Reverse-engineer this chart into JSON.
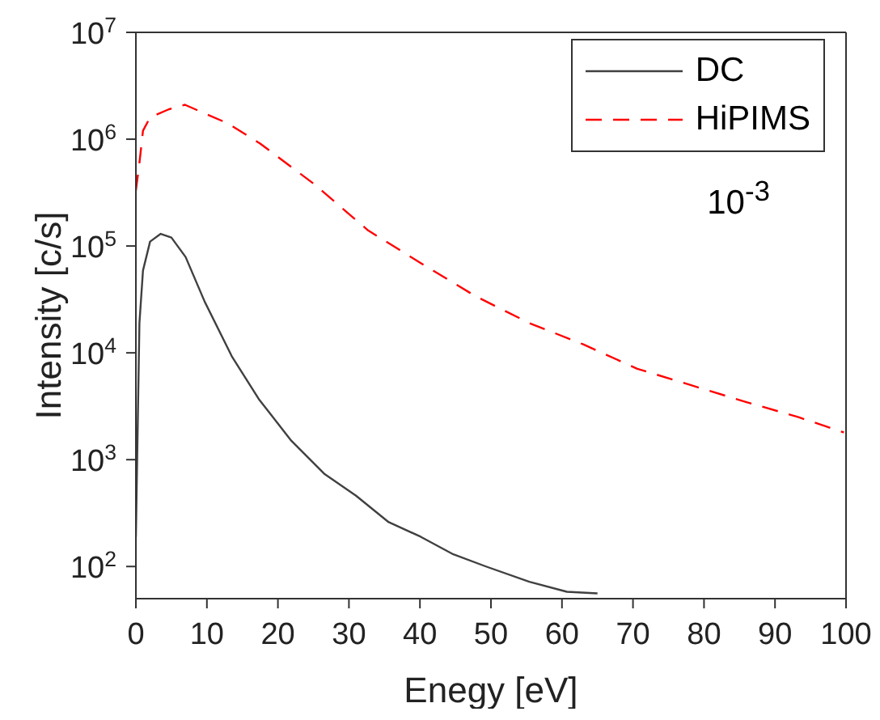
{
  "chart_data": {
    "type": "line",
    "xlabel": "Enegy [eV]",
    "ylabel": "Intensity [c/s]",
    "log": "y",
    "xlim": [
      0,
      100
    ],
    "xticks": [
      0,
      10,
      20,
      30,
      40,
      50,
      60,
      70,
      80,
      90,
      100
    ],
    "ylim": [
      50,
      10000000
    ],
    "yticks": [
      {
        "value": 100,
        "label": "10$^{2}$"
      },
      {
        "value": 1000,
        "label": "10$^{3}$"
      },
      {
        "value": 10000,
        "label": "10$^{4}$"
      },
      {
        "value": 100000,
        "label": "10$^{5}$"
      },
      {
        "value": 1000000,
        "label": "10$^{6}$"
      },
      {
        "value": 10000000,
        "label": "10$^{7}$"
      }
    ],
    "legend": "top right",
    "marker": "none",
    "annotations": [
      "10$^{-3}$"
    ],
    "series": [
      {
        "name": "DC",
        "color": "#404040",
        "line_style": "solid",
        "x": [
          0,
          0.5,
          1,
          2,
          3.5,
          5,
          7,
          9.7,
          13.5,
          17.3,
          21.9,
          26.5,
          31,
          35.6,
          40.1,
          44.7,
          49.3,
          55.4,
          60.7,
          65
        ],
        "values": [
          190,
          19000,
          59000,
          110000,
          130000,
          120000,
          79000,
          30000,
          9300,
          3700,
          1500,
          740,
          460,
          260,
          190,
          130,
          100,
          72,
          58,
          56
        ]
      },
      {
        "name": "HiPIMS",
        "color": "#ff0000",
        "line_style": "dashed",
        "x": [
          0,
          0.5,
          1,
          2,
          4.6,
          6.9,
          13,
          17.5,
          25.1,
          32.7,
          40.3,
          47.8,
          55.4,
          63,
          70.6,
          78.1,
          85.7,
          93.3,
          99.7
        ],
        "values": [
          330000,
          600000,
          1200000,
          1600000,
          1900000,
          2100000,
          1400000,
          910000,
          380000,
          140000,
          68000,
          34000,
          19000,
          12000,
          7100,
          5000,
          3500,
          2500,
          1800
        ]
      }
    ]
  }
}
